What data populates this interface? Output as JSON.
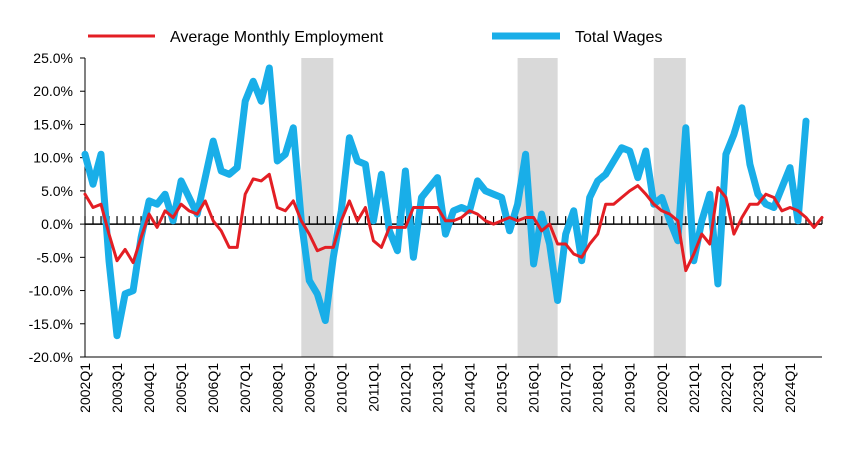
{
  "chart_data": {
    "type": "line",
    "title": "",
    "xlabel": "",
    "ylabel": "",
    "ylim": [
      -20,
      25
    ],
    "y_ticks": [
      "25.0%",
      "20.0%",
      "15.0%",
      "10.0%",
      "5.0%",
      "0.0%",
      "-5.0%",
      "-10.0%",
      "-15.0%",
      "-20.0%"
    ],
    "y_tick_values": [
      25,
      20,
      15,
      10,
      5,
      0,
      -5,
      -10,
      -15,
      -20
    ],
    "x_start_label": "2002Q1",
    "x_tick_labels": [
      "2002Q1",
      "2003Q1",
      "2004Q1",
      "2005Q1",
      "2006Q1",
      "2007Q1",
      "2008Q1",
      "2009Q1",
      "2010Q1",
      "2011Q1",
      "2012Q1",
      "2013Q1",
      "2014Q1",
      "2015Q1",
      "2016Q1",
      "2017Q1",
      "2018Q1",
      "2019Q1",
      "2020Q1",
      "2021Q1",
      "2022Q1",
      "2023Q1",
      "2024Q1"
    ],
    "recession_shading": [
      {
        "start": "2008Q4",
        "end": "2009Q4"
      },
      {
        "start": "2015Q3",
        "end": "2016Q4"
      },
      {
        "start": "2019Q4",
        "end": "2020Q4"
      }
    ],
    "legend_position": "top",
    "grid": false,
    "series": [
      {
        "name": "Average Monthly Employment",
        "color": "#e31e24",
        "values": [
          4.5,
          2.5,
          3.0,
          -1.5,
          -5.5,
          -3.8,
          -5.8,
          -2.0,
          1.5,
          -0.5,
          2.0,
          1.0,
          3.0,
          2.0,
          1.5,
          3.5,
          0.5,
          -1.0,
          -3.5,
          -3.5,
          4.5,
          6.8,
          6.5,
          7.5,
          2.5,
          2.0,
          3.5,
          0.5,
          -1.5,
          -4.0,
          -3.5,
          -3.5,
          0.5,
          3.5,
          0.5,
          2.5,
          -2.5,
          -3.5,
          -0.5,
          -0.5,
          -0.5,
          2.5,
          2.5,
          2.5,
          2.5,
          0.5,
          0.5,
          1.0,
          2.0,
          1.5,
          0.5,
          0.0,
          0.5,
          1.0,
          0.5,
          1.0,
          1.0,
          -1.0,
          0.0,
          -3.0,
          -3.0,
          -4.5,
          -5.0,
          -3.0,
          -1.5,
          3.0,
          3.0,
          4.0,
          5.0,
          5.8,
          4.5,
          3.0,
          2.0,
          1.5,
          0.5,
          -7.0,
          -4.5,
          -1.5,
          -3.0,
          5.5,
          4.0,
          -1.5,
          1.0,
          3.0,
          3.0,
          4.5,
          4.0,
          2.0,
          2.5,
          2.0,
          1.0,
          -0.5,
          1.0
        ]
      },
      {
        "name": "Total Wages",
        "color": "#19aee8",
        "values": [
          10.5,
          6.0,
          10.5,
          -5.5,
          -16.8,
          -10.5,
          -10.0,
          -2.0,
          3.5,
          3.0,
          4.5,
          0.5,
          6.5,
          4.0,
          1.5,
          7.0,
          12.5,
          8.0,
          7.5,
          8.5,
          18.5,
          21.5,
          18.5,
          23.5,
          9.5,
          10.5,
          14.5,
          0.5,
          -8.5,
          -10.5,
          -14.5,
          -5.0,
          2.0,
          13.0,
          9.5,
          9.0,
          0.5,
          7.5,
          -1.0,
          -4.0,
          8.0,
          -5.0,
          4.0,
          5.5,
          7.0,
          -1.5,
          2.0,
          2.5,
          2.0,
          6.5,
          5.0,
          4.5,
          4.0,
          -1.0,
          3.0,
          10.5,
          -6.0,
          1.5,
          -3.0,
          -11.5,
          -1.5,
          2.0,
          -5.5,
          4.0,
          6.5,
          7.5,
          9.5,
          11.5,
          11.0,
          7.0,
          11.0,
          3.0,
          4.0,
          0.5,
          -2.5,
          14.5,
          -5.5,
          0.5,
          4.5,
          -9.0,
          10.5,
          13.5,
          17.5,
          9.0,
          4.5,
          3.0,
          2.5,
          5.5,
          8.5,
          0.5,
          15.5
        ]
      }
    ]
  }
}
